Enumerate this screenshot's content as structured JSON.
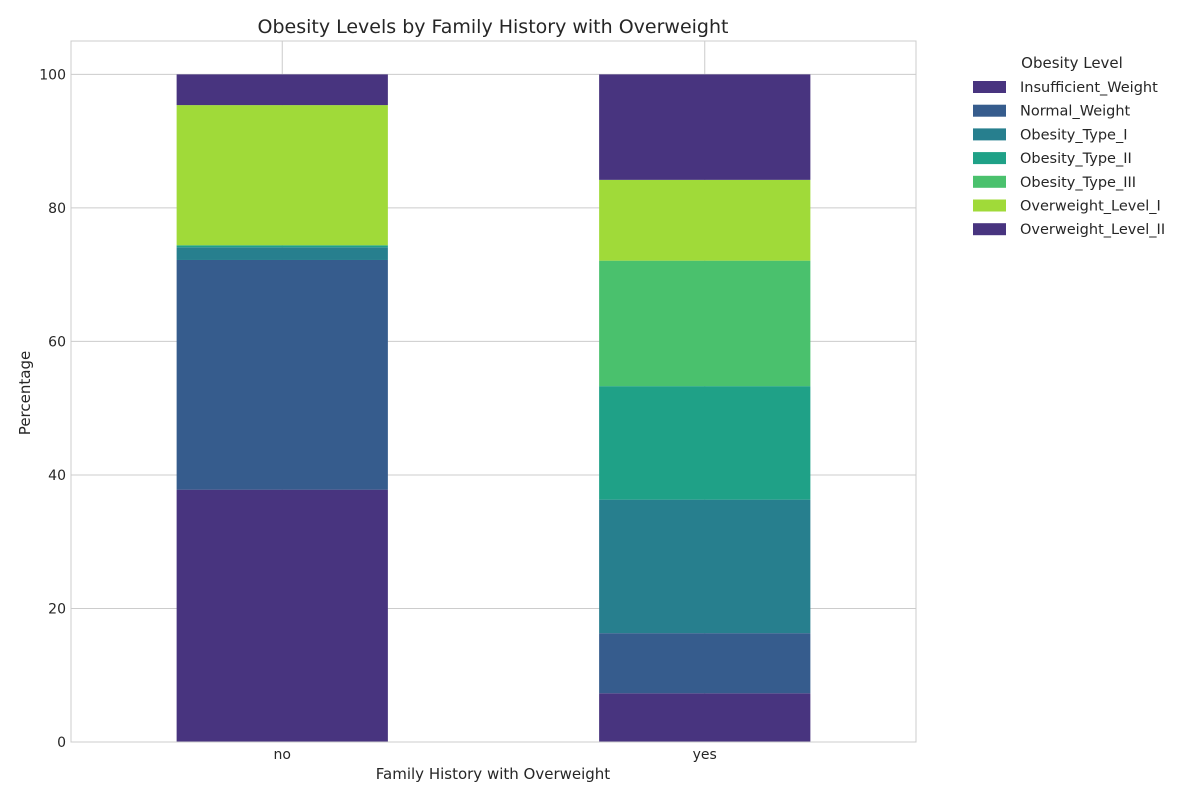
{
  "chart_data": {
    "type": "bar",
    "stacked": true,
    "title": "Obesity Levels by Family History with Overweight",
    "xlabel": "Family History with Overweight",
    "ylabel": "Percentage",
    "ylim": [
      0,
      105
    ],
    "yticks": [
      0,
      20,
      40,
      60,
      80,
      100
    ],
    "grid": true,
    "legend_title": "Obesity Level",
    "legend_position": "outside-right",
    "categories": [
      "no",
      "yes"
    ],
    "series": [
      {
        "name": "Insufficient_Weight",
        "color": "#48347f",
        "values": [
          37.8,
          7.3
        ]
      },
      {
        "name": "Normal_Weight",
        "color": "#365c8d",
        "values": [
          34.4,
          9.0
        ]
      },
      {
        "name": "Obesity_Type_I",
        "color": "#277f8e",
        "values": [
          1.9,
          20.0
        ]
      },
      {
        "name": "Obesity_Type_II",
        "color": "#1fa187",
        "values": [
          0.3,
          17.0
        ]
      },
      {
        "name": "Obesity_Type_III",
        "color": "#4ac16d",
        "values": [
          0.0,
          18.8
        ]
      },
      {
        "name": "Overweight_Level_I",
        "color": "#a0da39",
        "values": [
          21.0,
          12.1
        ]
      },
      {
        "name": "Overweight_Level_II",
        "color": "#48347f",
        "values": [
          4.6,
          15.8
        ]
      }
    ]
  }
}
